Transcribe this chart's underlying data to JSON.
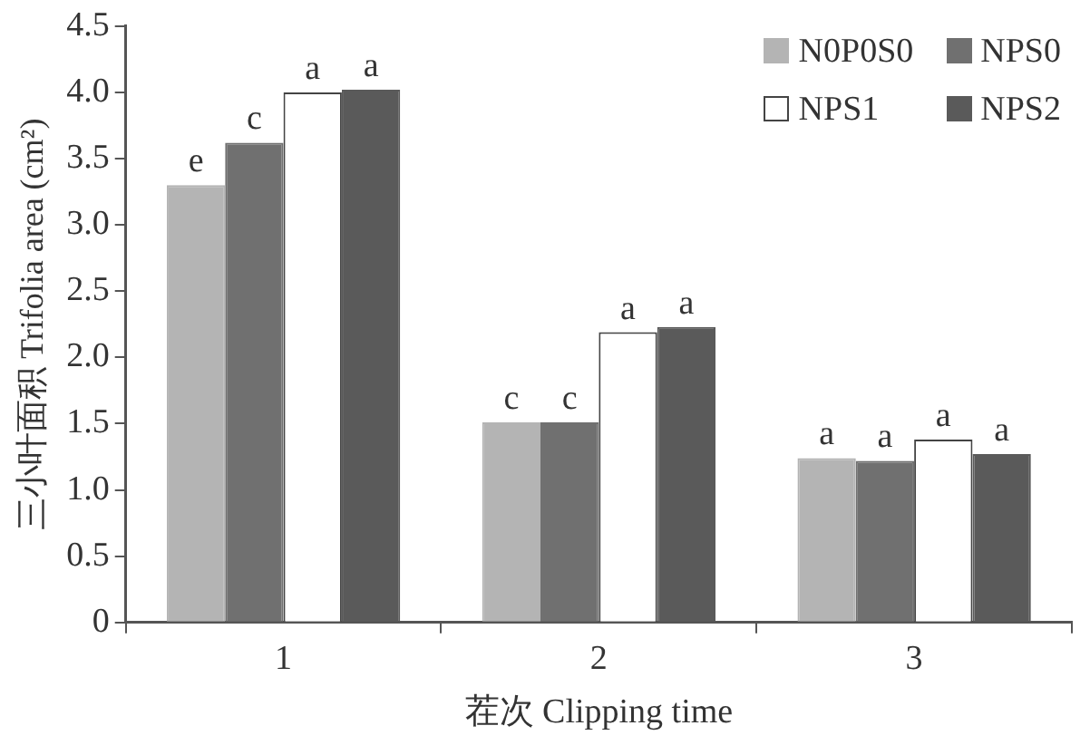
{
  "chart_data": {
    "type": "bar",
    "xlabel": "茬次 Clipping time",
    "ylabel": "三小叶面积 Trifolia area (cm²)",
    "categories": [
      "1",
      "2",
      "3"
    ],
    "series": [
      {
        "name": "N0P0S0",
        "color": "#b4b4b4",
        "values": [
          3.3,
          1.51,
          1.24
        ],
        "value_labels": [
          "e",
          "c",
          "a"
        ]
      },
      {
        "name": "NPS0",
        "color": "#707070",
        "values": [
          3.62,
          1.51,
          1.22
        ],
        "value_labels": [
          "c",
          "c",
          "a"
        ]
      },
      {
        "name": "NPS1",
        "color": "#ffffff",
        "values": [
          4.0,
          2.19,
          1.38
        ],
        "value_labels": [
          "a",
          "a",
          "a"
        ]
      },
      {
        "name": "NPS2",
        "color": "#5a5a5a",
        "values": [
          4.02,
          2.23,
          1.27
        ],
        "value_labels": [
          "a",
          "a",
          "a"
        ]
      }
    ],
    "ylim": [
      0,
      4.5
    ],
    "yticks": [
      0,
      {
        "value": 0.5,
        "label": "0.5"
      },
      {
        "value": 1,
        "label": "1.0"
      },
      {
        "value": 1.5,
        "label": "1.5"
      },
      {
        "value": 2,
        "label": "2.0"
      },
      {
        "value": 2.5,
        "label": "2.5"
      },
      {
        "value": 3,
        "label": "3.0"
      },
      {
        "value": 3.5,
        "label": "3.5"
      },
      {
        "value": 4,
        "label": "4.0"
      },
      {
        "value": 4.5,
        "label": "4.5"
      }
    ],
    "grid": false,
    "legend": "top right"
  }
}
